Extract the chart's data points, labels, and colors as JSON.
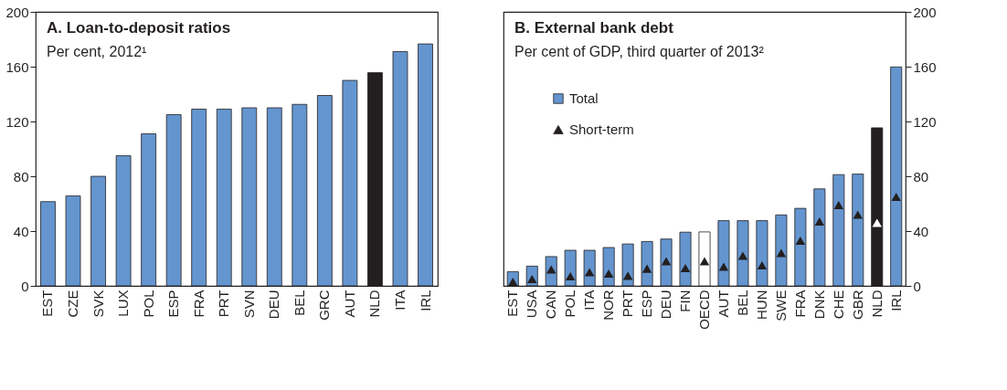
{
  "chart_data": [
    {
      "type": "bar",
      "title": "A. Loan-to-deposit ratios",
      "subtitle": "Per cent, 2012¹",
      "categories": [
        "EST",
        "CZE",
        "SVK",
        "LUX",
        "POL",
        "ESP",
        "FRA",
        "PRT",
        "SVN",
        "DEU",
        "BEL",
        "GRC",
        "AUT",
        "NLD",
        "ITA",
        "IRL"
      ],
      "values": [
        61.5,
        65.7,
        80,
        95,
        111,
        125,
        129,
        129,
        130,
        130,
        132.5,
        139,
        150,
        155.6,
        171,
        176.6
      ],
      "colors": [
        "#6495cf",
        "#6495cf",
        "#6495cf",
        "#6495cf",
        "#6495cf",
        "#6495cf",
        "#6495cf",
        "#6495cf",
        "#6495cf",
        "#6495cf",
        "#6495cf",
        "#6495cf",
        "#6495cf",
        "#231f20",
        "#6495cf",
        "#6495cf"
      ],
      "ylim": [
        0,
        200
      ],
      "yticks": [
        0,
        40,
        80,
        120,
        160,
        200
      ]
    },
    {
      "type": "bar",
      "title": "B. External bank debt",
      "subtitle": "Per cent of GDP, third quarter of 2013²",
      "categories": [
        "EST",
        "USA",
        "CAN",
        "POL",
        "ITA",
        "NOR",
        "PRT",
        "ESP",
        "DEU",
        "FIN",
        "OECD",
        "AUT",
        "BEL",
        "HUN",
        "SWE",
        "FRA",
        "DNK",
        "CHE",
        "GBR",
        "NLD",
        "IRL"
      ],
      "series": [
        {
          "name": "Total",
          "type": "bar",
          "axis": "y2",
          "color": "#6495cf",
          "values": [
            10.4,
            14.4,
            21.4,
            26,
            26,
            28,
            30.6,
            32.4,
            34.2,
            39.2,
            39.4,
            47.6,
            47.6,
            47.6,
            51.8,
            56.6,
            70.8,
            81.2,
            81.6,
            115.4,
            159.8
          ],
          "colors": [
            "#6495cf",
            "#6495cf",
            "#6495cf",
            "#6495cf",
            "#6495cf",
            "#6495cf",
            "#6495cf",
            "#6495cf",
            "#6495cf",
            "#6495cf",
            "#ffffff",
            "#6495cf",
            "#6495cf",
            "#6495cf",
            "#6495cf",
            "#6495cf",
            "#6495cf",
            "#6495cf",
            "#6495cf",
            "#231f20",
            "#6495cf"
          ]
        },
        {
          "name": "Short-term",
          "type": "scatter",
          "axis": "y2",
          "marker": "triangle",
          "color": "#231f20",
          "values": [
            3,
            5,
            12,
            7,
            10,
            9,
            7.4,
            12.6,
            18,
            13,
            18,
            14,
            22,
            15,
            24,
            33,
            47,
            59,
            52,
            46,
            65
          ],
          "colors": [
            "#231f20",
            "#231f20",
            "#231f20",
            "#231f20",
            "#231f20",
            "#231f20",
            "#231f20",
            "#231f20",
            "#231f20",
            "#231f20",
            "#231f20",
            "#231f20",
            "#231f20",
            "#231f20",
            "#231f20",
            "#231f20",
            "#231f20",
            "#231f20",
            "#231f20",
            "#ffffff",
            "#231f20"
          ]
        }
      ],
      "y2lim": [
        0,
        200
      ],
      "y2ticks": [
        0,
        40,
        80,
        120,
        160,
        200
      ],
      "legend": "top left"
    }
  ]
}
